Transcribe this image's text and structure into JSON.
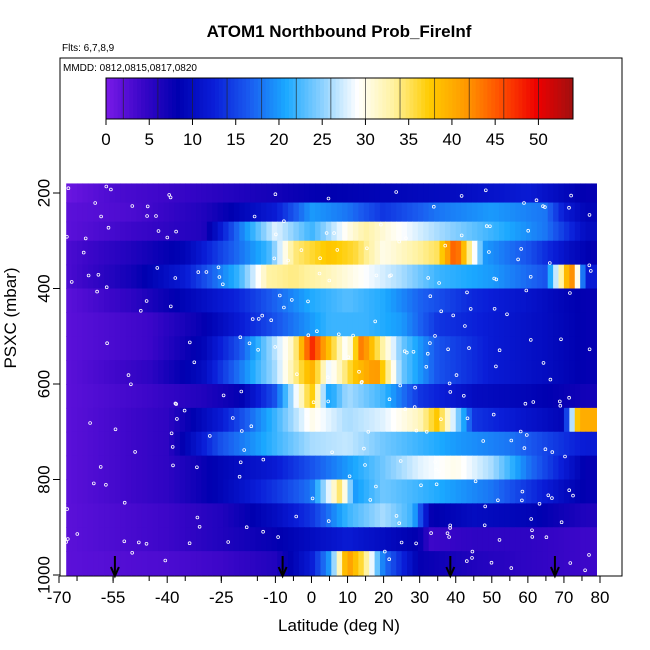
{
  "chart_data": {
    "type": "heatmap",
    "title": "ATOM1 Northbound Prob_FireInf",
    "subtitle_flights": "Flts: 6,7,8,9",
    "subtitle_dates": "MMDD: 0812,0815,0817,0820",
    "xlabel": "Latitude (deg N)",
    "ylabel": "PSXC (mbar)",
    "xlim": [
      -70,
      80
    ],
    "ylim": [
      1000,
      150
    ],
    "x_ticks": [
      -70,
      -55,
      -40,
      -25,
      -10,
      0,
      10,
      20,
      30,
      40,
      50,
      60,
      70,
      80
    ],
    "y_ticks": [
      200,
      400,
      600,
      800,
      1000
    ],
    "colorbar": {
      "min": 0,
      "max": 54,
      "ticks": [
        0,
        5,
        10,
        15,
        20,
        25,
        30,
        35,
        40,
        45,
        50
      ],
      "colors": [
        "#7a1ae8",
        "#3a06c8",
        "#0000b0",
        "#0a1ed8",
        "#1a5cf0",
        "#1aa8ff",
        "#8ad0ff",
        "#ffffff",
        "#fff2a0",
        "#ffcc00",
        "#ff9a00",
        "#ff4d00",
        "#ee0000",
        "#a01010"
      ]
    },
    "pressure_bands": [
      180,
      220,
      260,
      300,
      350,
      400,
      450,
      500,
      550,
      600,
      650,
      700,
      750,
      800,
      850,
      900,
      950,
      1000
    ],
    "band_anchors": [
      [
        [
          -68,
          1
        ],
        [
          -55,
          3
        ],
        [
          -40,
          4
        ],
        [
          -20,
          6
        ],
        [
          0,
          8
        ],
        [
          20,
          9
        ],
        [
          40,
          10
        ],
        [
          60,
          12
        ],
        [
          76,
          8
        ]
      ],
      [
        [
          -68,
          2
        ],
        [
          -50,
          3
        ],
        [
          -30,
          6
        ],
        [
          -10,
          12
        ],
        [
          0,
          20
        ],
        [
          10,
          18
        ],
        [
          20,
          14
        ],
        [
          35,
          18
        ],
        [
          50,
          20
        ],
        [
          65,
          18
        ],
        [
          70,
          12
        ],
        [
          76,
          9
        ]
      ],
      [
        [
          -68,
          2
        ],
        [
          -50,
          4
        ],
        [
          -30,
          6
        ],
        [
          -20,
          18
        ],
        [
          -10,
          28
        ],
        [
          0,
          22
        ],
        [
          10,
          30
        ],
        [
          15,
          33
        ],
        [
          22,
          30
        ],
        [
          35,
          26
        ],
        [
          50,
          22
        ],
        [
          65,
          18
        ],
        [
          76,
          10
        ]
      ],
      [
        [
          -68,
          3
        ],
        [
          -50,
          6
        ],
        [
          -35,
          9
        ],
        [
          -25,
          15
        ],
        [
          -12,
          22
        ],
        [
          -5,
          34
        ],
        [
          5,
          38
        ],
        [
          12,
          36
        ],
        [
          20,
          30
        ],
        [
          35,
          35
        ],
        [
          40,
          46
        ],
        [
          48,
          20
        ],
        [
          60,
          16
        ],
        [
          72,
          10
        ],
        [
          78,
          8
        ]
      ],
      [
        [
          -68,
          3
        ],
        [
          -50,
          7
        ],
        [
          -35,
          12
        ],
        [
          -20,
          22
        ],
        [
          -12,
          33
        ],
        [
          -5,
          34
        ],
        [
          5,
          32
        ],
        [
          15,
          29
        ],
        [
          25,
          26
        ],
        [
          35,
          22
        ],
        [
          50,
          20
        ],
        [
          65,
          16
        ],
        [
          72,
          44
        ],
        [
          76,
          12
        ]
      ],
      [
        [
          -68,
          2
        ],
        [
          -50,
          5
        ],
        [
          -35,
          9
        ],
        [
          -20,
          13
        ],
        [
          -10,
          17
        ],
        [
          0,
          21
        ],
        [
          10,
          23
        ],
        [
          20,
          21
        ],
        [
          30,
          17
        ],
        [
          45,
          13
        ],
        [
          60,
          11
        ],
        [
          70,
          9
        ],
        [
          76,
          8
        ]
      ],
      [
        [
          -68,
          2
        ],
        [
          -45,
          4
        ],
        [
          -30,
          8
        ],
        [
          -20,
          12
        ],
        [
          -5,
          18
        ],
        [
          5,
          22
        ],
        [
          15,
          22
        ],
        [
          25,
          20
        ],
        [
          35,
          14
        ],
        [
          50,
          12
        ],
        [
          65,
          10
        ],
        [
          76,
          8
        ]
      ],
      [
        [
          -68,
          2
        ],
        [
          -45,
          4
        ],
        [
          -30,
          9
        ],
        [
          -20,
          16
        ],
        [
          -5,
          32
        ],
        [
          0,
          48
        ],
        [
          5,
          38
        ],
        [
          10,
          28
        ],
        [
          14,
          44
        ],
        [
          18,
          36
        ],
        [
          25,
          24
        ],
        [
          35,
          16
        ],
        [
          50,
          12
        ],
        [
          65,
          10
        ],
        [
          76,
          8
        ]
      ],
      [
        [
          -68,
          2
        ],
        [
          -45,
          5
        ],
        [
          -30,
          10
        ],
        [
          -20,
          18
        ],
        [
          -10,
          26
        ],
        [
          -5,
          33
        ],
        [
          0,
          40
        ],
        [
          5,
          28
        ],
        [
          12,
          38
        ],
        [
          18,
          42
        ],
        [
          25,
          24
        ],
        [
          35,
          16
        ],
        [
          50,
          12
        ],
        [
          65,
          10
        ],
        [
          76,
          8
        ]
      ],
      [
        [
          -68,
          2
        ],
        [
          -45,
          4
        ],
        [
          -30,
          6
        ],
        [
          -20,
          8
        ],
        [
          -10,
          16
        ],
        [
          0,
          38
        ],
        [
          5,
          20
        ],
        [
          10,
          26
        ],
        [
          20,
          22
        ],
        [
          30,
          14
        ],
        [
          45,
          10
        ],
        [
          60,
          9
        ],
        [
          76,
          7
        ]
      ],
      [
        [
          -68,
          2
        ],
        [
          -40,
          5
        ],
        [
          -25,
          12
        ],
        [
          -10,
          22
        ],
        [
          0,
          30
        ],
        [
          10,
          26
        ],
        [
          20,
          28
        ],
        [
          30,
          32
        ],
        [
          35,
          38
        ],
        [
          45,
          14
        ],
        [
          60,
          11
        ],
        [
          70,
          9
        ],
        [
          74,
          40
        ]
      ],
      [
        [
          -68,
          2
        ],
        [
          -40,
          5
        ],
        [
          -25,
          16
        ],
        [
          -10,
          22
        ],
        [
          0,
          26
        ],
        [
          10,
          27
        ],
        [
          20,
          24
        ],
        [
          30,
          22
        ],
        [
          40,
          20
        ],
        [
          55,
          18
        ],
        [
          65,
          15
        ],
        [
          76,
          12
        ]
      ],
      [
        [
          -68,
          2
        ],
        [
          -40,
          5
        ],
        [
          -25,
          9
        ],
        [
          -10,
          12
        ],
        [
          0,
          16
        ],
        [
          10,
          20
        ],
        [
          20,
          24
        ],
        [
          30,
          28
        ],
        [
          40,
          30
        ],
        [
          50,
          26
        ],
        [
          60,
          18
        ],
        [
          70,
          12
        ],
        [
          76,
          8
        ]
      ],
      [
        [
          -68,
          2
        ],
        [
          -40,
          5
        ],
        [
          -25,
          9
        ],
        [
          -10,
          14
        ],
        [
          0,
          18
        ],
        [
          8,
          35
        ],
        [
          12,
          20
        ],
        [
          20,
          24
        ],
        [
          30,
          22
        ],
        [
          40,
          20
        ],
        [
          50,
          18
        ],
        [
          60,
          14
        ],
        [
          70,
          10
        ],
        [
          76,
          8
        ]
      ],
      [
        [
          -68,
          2
        ],
        [
          -40,
          4
        ],
        [
          -25,
          6
        ],
        [
          -10,
          10
        ],
        [
          0,
          14
        ],
        [
          10,
          22
        ],
        [
          20,
          26
        ],
        [
          28,
          22
        ],
        [
          33,
          8
        ],
        [
          45,
          10
        ],
        [
          60,
          9
        ],
        [
          76,
          6
        ]
      ],
      [
        [
          -68,
          2
        ],
        [
          -40,
          4
        ],
        [
          -25,
          6
        ],
        [
          -10,
          8
        ],
        [
          0,
          10
        ],
        [
          10,
          12
        ],
        [
          20,
          10
        ],
        [
          30,
          8
        ],
        [
          33,
          4
        ],
        [
          45,
          5
        ],
        [
          60,
          5
        ],
        [
          76,
          4
        ]
      ],
      [
        [
          -68,
          2
        ],
        [
          -40,
          3
        ],
        [
          -25,
          4
        ],
        [
          -10,
          6
        ],
        [
          0,
          12
        ],
        [
          5,
          20
        ],
        [
          10,
          42
        ],
        [
          15,
          34
        ],
        [
          20,
          18
        ],
        [
          30,
          8
        ],
        [
          45,
          6
        ],
        [
          60,
          5
        ],
        [
          76,
          4
        ]
      ]
    ],
    "arrow_markers_lat": [
      -54.5,
      -8,
      38.5,
      67.5
    ]
  }
}
